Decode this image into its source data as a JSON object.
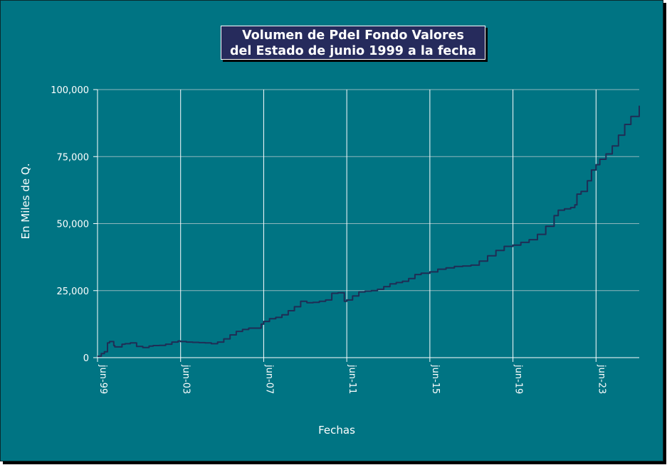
{
  "chart_data": {
    "type": "line",
    "title_line1": "Volumen de PdeI Fondo Valores",
    "title_line2": "del Estado de junio 1999 a la fecha",
    "xlabel": "Fechas",
    "ylabel": "En Miles de Q.",
    "ylim": [
      0,
      100000
    ],
    "xlim": [
      1999.42,
      2025.5
    ],
    "yticks": [
      {
        "value": 0,
        "label": "0"
      },
      {
        "value": 25000,
        "label": "25,000"
      },
      {
        "value": 50000,
        "label": "50,000"
      },
      {
        "value": 75000,
        "label": "75,000"
      },
      {
        "value": 100000,
        "label": "100,000"
      }
    ],
    "xticks": [
      {
        "value": 1999.42,
        "label": "jun-99"
      },
      {
        "value": 2003.42,
        "label": "jun-03"
      },
      {
        "value": 2007.42,
        "label": "jun-07"
      },
      {
        "value": 2011.42,
        "label": "jun-11"
      },
      {
        "value": 2015.42,
        "label": "jun-15"
      },
      {
        "value": 2019.42,
        "label": "jun-19"
      },
      {
        "value": 2023.42,
        "label": "jun-23"
      }
    ],
    "grid": true,
    "line_color": "#1f2d55",
    "series": [
      {
        "x": [
          1999.42,
          1999.6,
          1999.75,
          1999.9,
          2000.0,
          2000.2,
          2000.25,
          2000.6,
          2000.75,
          2001.0,
          2001.3,
          2001.6,
          2001.9,
          2002.1,
          2002.4,
          2002.7,
          2003.0,
          2003.3,
          2003.42,
          2003.7,
          2004.0,
          2004.3,
          2004.6,
          2004.9,
          2005.2,
          2005.5,
          2005.8,
          2006.1,
          2006.4,
          2006.7,
          2007.0,
          2007.3,
          2007.42,
          2007.7,
          2008.0,
          2008.3,
          2008.6,
          2008.9,
          2009.2,
          2009.5,
          2009.8,
          2010.1,
          2010.4,
          2010.7,
          2011.0,
          2011.3,
          2011.42,
          2011.7,
          2012.0,
          2012.3,
          2012.6,
          2012.9,
          2013.2,
          2013.5,
          2013.8,
          2014.1,
          2014.4,
          2014.7,
          2015.0,
          2015.42,
          2015.8,
          2016.2,
          2016.6,
          2017.0,
          2017.4,
          2017.8,
          2018.2,
          2018.6,
          2019.0,
          2019.42,
          2019.8,
          2020.2,
          2020.6,
          2021.0,
          2021.4,
          2021.6,
          2021.9,
          2022.2,
          2022.4,
          2022.5,
          2022.7,
          2023.0,
          2023.2,
          2023.42,
          2023.6,
          2023.9,
          2024.2,
          2024.5,
          2024.8,
          2025.1,
          2025.5
        ],
        "y": [
          500,
          1500,
          2200,
          5500,
          6000,
          4500,
          4000,
          5000,
          5200,
          5500,
          4200,
          3800,
          4300,
          4500,
          4600,
          5000,
          5800,
          6200,
          6000,
          5800,
          5700,
          5600,
          5500,
          5200,
          5800,
          7000,
          8500,
          9800,
          10500,
          11000,
          11000,
          12500,
          13500,
          14500,
          15000,
          16000,
          17500,
          19000,
          21000,
          20500,
          20600,
          21000,
          21500,
          24000,
          24200,
          21000,
          21500,
          23000,
          24500,
          24800,
          25000,
          25500,
          26500,
          27500,
          28000,
          28500,
          29500,
          31000,
          31500,
          32000,
          33000,
          33500,
          34000,
          34200,
          34500,
          36000,
          38000,
          40000,
          41500,
          42000,
          43000,
          44000,
          46000,
          49000,
          53000,
          55000,
          55500,
          56000,
          57000,
          61000,
          62000,
          66000,
          70000,
          72000,
          74000,
          76000,
          79000,
          83000,
          87000,
          90000,
          94000
        ]
      }
    ]
  }
}
